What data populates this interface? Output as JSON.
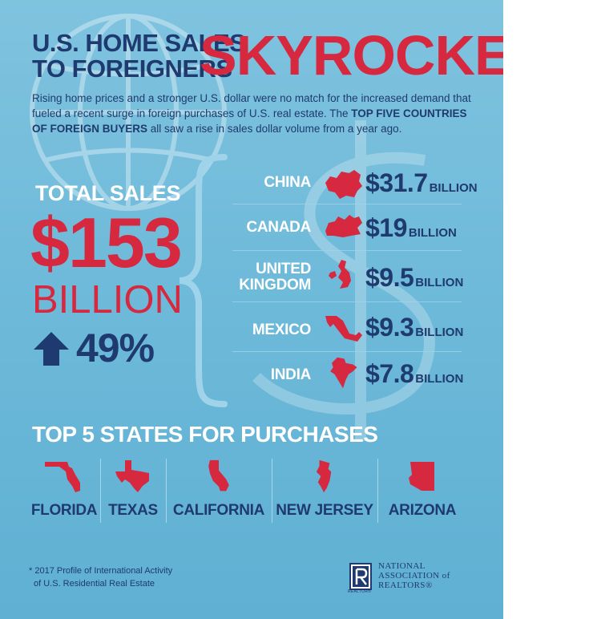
{
  "header": {
    "title_line1": "U.S. HOME SALES",
    "title_line2": "TO FOREIGNERS",
    "title_emphasis": "SKYROCKET",
    "intro_text_1": "Rising home prices and a stronger U.S. dollar were no match for the increased demand that fueled a recent surge in foreign purchases of U.S. real estate. The ",
    "intro_bold": "TOP FIVE COUNTRIES OF FOREIGN BUYERS",
    "intro_text_2": " all saw a rise in sales dollar volume from a year ago."
  },
  "total": {
    "label": "TOTAL SALES",
    "amount": "$153",
    "unit": "BILLION",
    "change": "49%",
    "change_icon": "up-arrow-icon"
  },
  "countries": [
    {
      "name": "CHINA",
      "amount": "$31.7",
      "unit": "BILLION",
      "icon": "china-map-icon"
    },
    {
      "name": "CANADA",
      "amount": "$19",
      "unit": "BILLION",
      "icon": "canada-map-icon"
    },
    {
      "name_line1": "UNITED",
      "name_line2": "KINGDOM",
      "amount": "$9.5",
      "unit": "BILLION",
      "icon": "uk-map-icon"
    },
    {
      "name": "MEXICO",
      "amount": "$9.3",
      "unit": "BILLION",
      "icon": "mexico-map-icon"
    },
    {
      "name": "INDIA",
      "amount": "$7.8",
      "unit": "BILLION",
      "icon": "india-map-icon"
    }
  ],
  "states": {
    "title": "TOP 5 STATES FOR PURCHASES",
    "items": [
      {
        "name": "FLORIDA",
        "icon": "florida-map-icon"
      },
      {
        "name": "TEXAS",
        "icon": "texas-map-icon"
      },
      {
        "name": "CALIFORNIA",
        "icon": "california-map-icon"
      },
      {
        "name": "NEW JERSEY",
        "icon": "new-jersey-map-icon"
      },
      {
        "name": "ARIZONA",
        "icon": "arizona-map-icon"
      }
    ]
  },
  "footer": {
    "footnote_line1": "* 2017 Profile of International Activity",
    "footnote_line2": "of U.S. Residential Real Estate",
    "org_line1": "NATIONAL",
    "org_line2": "ASSOCIATION of",
    "org_line3": "REALTORS®",
    "logo_caption": "REALTOR®"
  },
  "colors": {
    "background": "#6db9d9",
    "navy": "#1f3a6e",
    "red": "#d6283f",
    "white": "#ffffff"
  }
}
